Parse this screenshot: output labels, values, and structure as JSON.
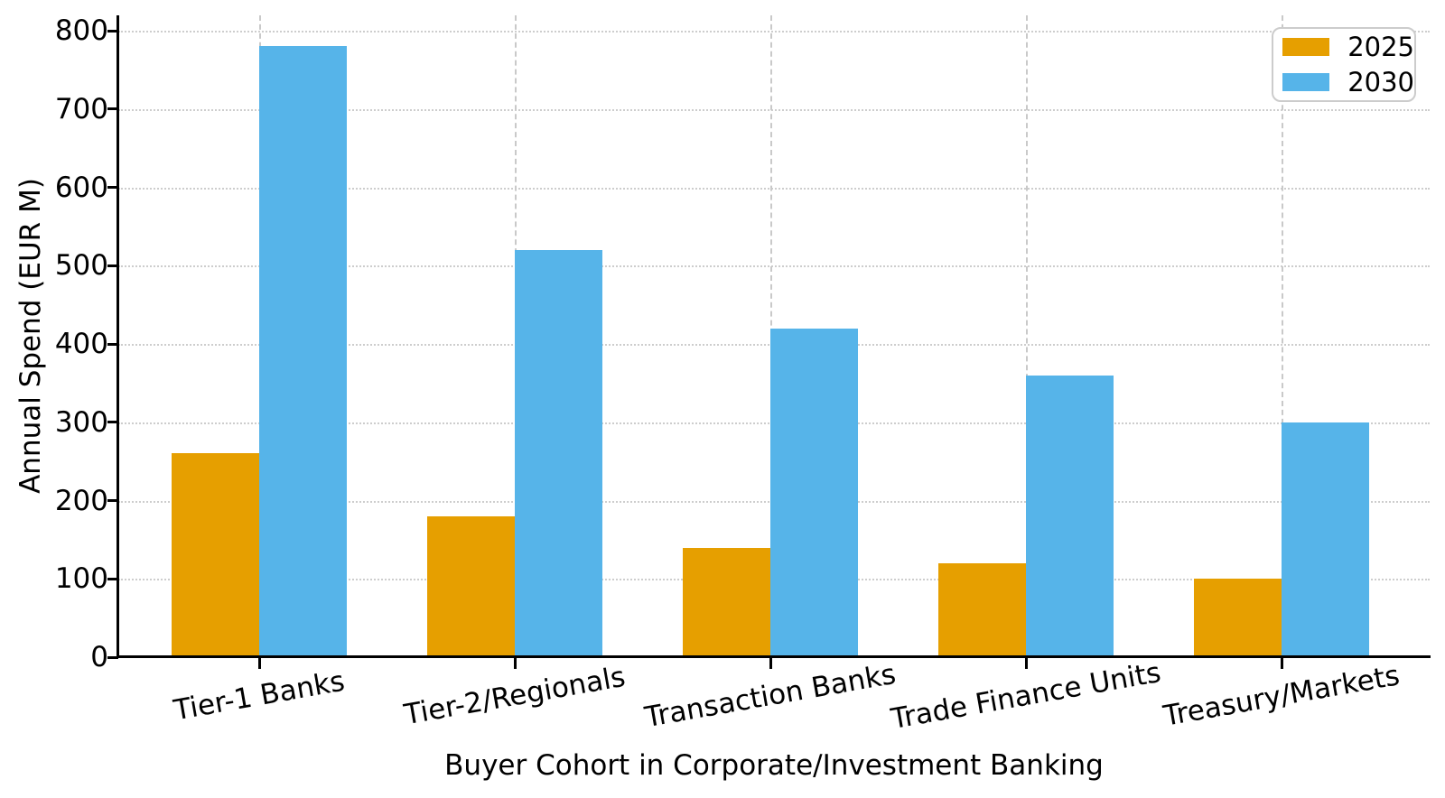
{
  "chart_data": {
    "type": "bar",
    "title": "",
    "categories": [
      "Tier-1 Banks",
      "Tier-2/Regionals",
      "Transaction Banks",
      "Trade Finance Units",
      "Treasury/Markets"
    ],
    "series": [
      {
        "name": "2025",
        "color": "#E69F00",
        "values": [
          260,
          180,
          140,
          120,
          100
        ]
      },
      {
        "name": "2030",
        "color": "#56B4E9",
        "values": [
          780,
          520,
          420,
          360,
          300
        ]
      }
    ],
    "xlabel": "Buyer Cohort in Corporate/Investment Banking",
    "ylabel": "Annual Spend (EUR M)",
    "ylim": [
      0,
      820
    ],
    "yticks": [
      0,
      100,
      200,
      300,
      400,
      500,
      600,
      700,
      800
    ],
    "legend_position": "upper right",
    "grid": {
      "horizontal": "dotted",
      "vertical": "dashed at category centers"
    },
    "colors": {
      "grid": "#cdcdcd",
      "spine": "#000000",
      "legend_border": "#cccccc"
    }
  }
}
